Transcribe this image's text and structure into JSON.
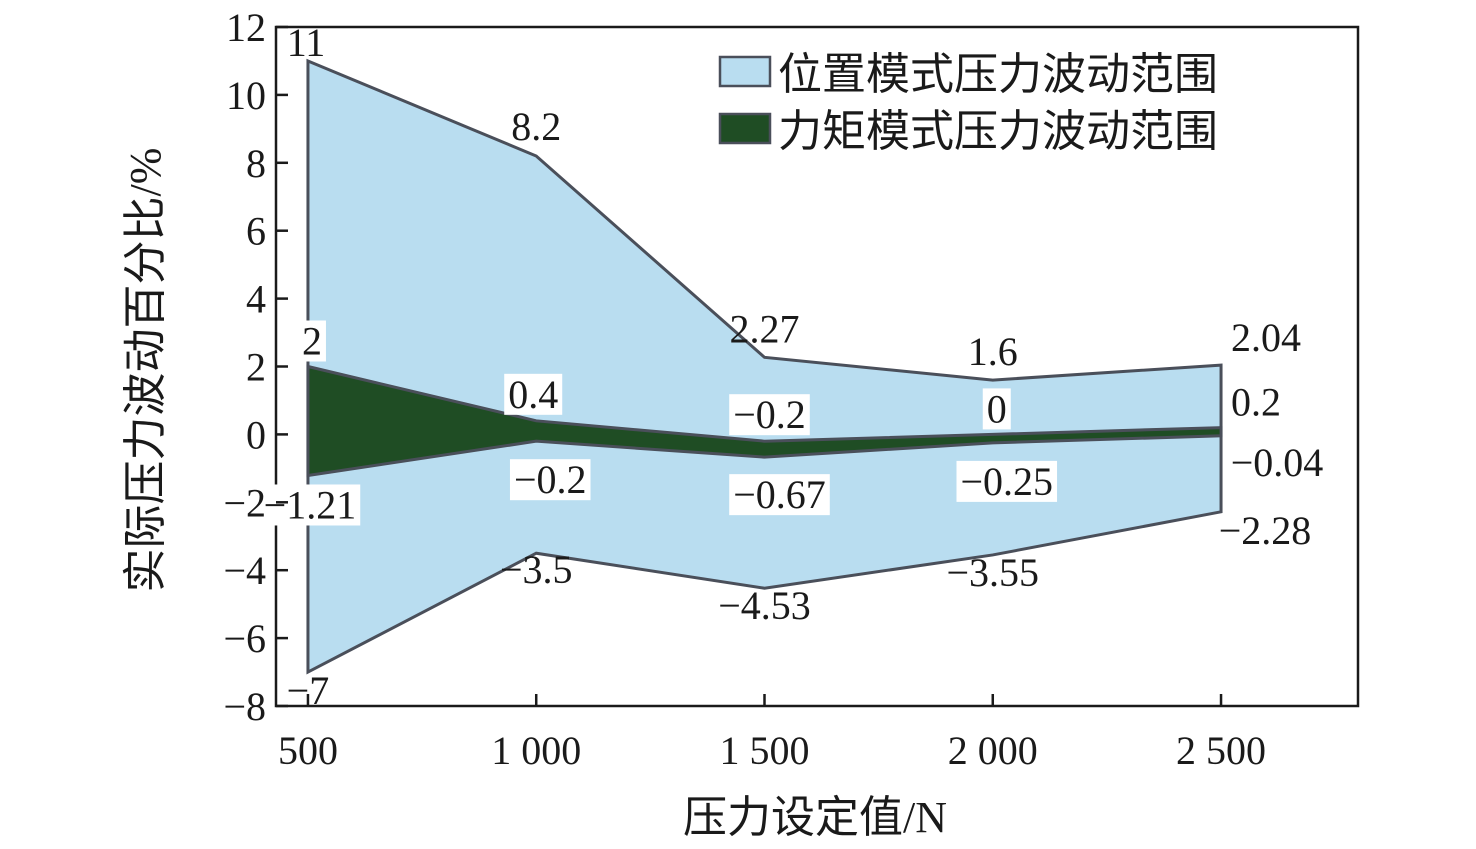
{
  "chart_data": {
    "type": "area",
    "xlabel": "压力设定值/N",
    "ylabel": "实际压力波动百分比/%",
    "x": [
      500,
      1000,
      1500,
      2000,
      2500
    ],
    "xtick_labels": [
      "500",
      "1 000",
      "1 500",
      "2 000",
      "2 500"
    ],
    "xlim": [
      430,
      2800
    ],
    "ylim": [
      -8,
      12
    ],
    "yticks": [
      -8,
      -6,
      -4,
      -2,
      0,
      2,
      4,
      6,
      8,
      10,
      12
    ],
    "ytick_labels": [
      "−8",
      "−6",
      "−4",
      "−2",
      "0",
      "2",
      "4",
      "6",
      "8",
      "10",
      "12"
    ],
    "grid": false,
    "legend_position": "top-right",
    "series": [
      {
        "name": "位置模式压力波动范围",
        "color": "#b9ddf0",
        "upper": [
          11,
          8.2,
          2.27,
          1.6,
          2.04
        ],
        "lower": [
          -7,
          -3.5,
          -4.53,
          -3.55,
          -2.28
        ],
        "upper_labels": [
          "11",
          "8.2",
          "2.27",
          "1.6",
          "2.04"
        ],
        "lower_labels": [
          "−7",
          "−3.5",
          "−4.53",
          "−3.55",
          "−2.28"
        ]
      },
      {
        "name": "力矩模式压力波动范围",
        "color": "#1f4d24",
        "upper": [
          2,
          0.4,
          -0.2,
          0,
          0.2
        ],
        "lower": [
          -1.21,
          -0.2,
          -0.67,
          -0.25,
          -0.04
        ],
        "upper_labels": [
          "2",
          "0.4",
          "−0.2",
          "0",
          "0.2"
        ],
        "lower_labels": [
          "−1.21",
          "−0.2",
          "−0.67",
          "−0.25",
          "−0.04"
        ]
      }
    ]
  }
}
